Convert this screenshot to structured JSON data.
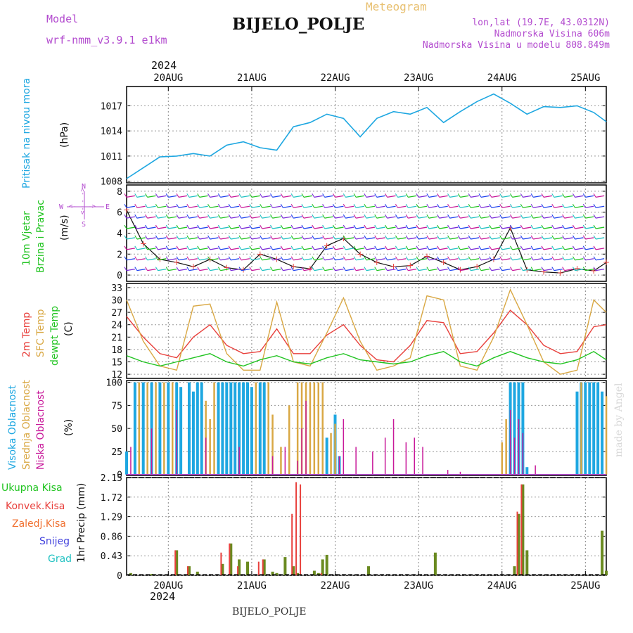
{
  "header": {
    "title": "BIJELO_POLJE",
    "meteogram": "Meteogram",
    "model_label": "Model",
    "model_name": "wrf-nmm_v3.9.1 e1km",
    "location": "lon,lat (19.7E, 43.0312N)",
    "elevation": "Nadmorska Visina 606m",
    "model_elevation": "Nadmorska Visina u modelu 808.849m",
    "year_top": "2024",
    "year_bottom": "2024",
    "footer": "BIJELO_POLJE",
    "watermark": "made by Angel"
  },
  "colors": {
    "cyan": "#1ea7e1",
    "magenta": "#b34ccf",
    "orange_title": "#e8c070",
    "red": "#e8403c",
    "gold": "#d9a844",
    "green": "#22c422",
    "olive": "#6a8a20",
    "purple": "#7a2bd8",
    "blue": "#2244ee",
    "teal": "#22c2c2",
    "pink": "#c8199a"
  },
  "chart_data": [
    {
      "type": "line",
      "name_label": "pressure",
      "labels": [
        "Pritisak na nivou mora",
        "(hPa)"
      ],
      "x": [
        0,
        0.2,
        0.4,
        0.6,
        0.8,
        1.0,
        1.2,
        1.4,
        1.6,
        1.8,
        2.0,
        2.2,
        2.4,
        2.6,
        2.8,
        3.0,
        3.2,
        3.4,
        3.6,
        3.8,
        4.0,
        4.2,
        4.4,
        4.6,
        4.8,
        5.0,
        5.2,
        5.4,
        5.6,
        5.75
      ],
      "values": [
        1008.3,
        1009.6,
        1010.9,
        1011.0,
        1011.3,
        1011.0,
        1012.3,
        1012.7,
        1012.0,
        1011.7,
        1014.5,
        1015.0,
        1016.0,
        1015.5,
        1013.3,
        1015.5,
        1016.3,
        1016.0,
        1016.8,
        1015.0,
        1016.3,
        1017.5,
        1018.4,
        1017.3,
        1016.0,
        1016.9,
        1016.8,
        1017.0,
        1016.2,
        1015.1
      ],
      "yticks": [
        1008,
        1011,
        1014,
        1017
      ],
      "ylim": [
        1007.8,
        1019.3
      ]
    },
    {
      "type": "line",
      "name_label": "wind",
      "labels": [
        "10m Vjetar",
        "Brzina i Pravac",
        "(m/s)"
      ],
      "compass": [
        "N",
        "S",
        "W",
        "E",
        "<- - ->",
        "<- - ->"
      ],
      "x": [
        0,
        0.2,
        0.4,
        0.6,
        0.8,
        1.0,
        1.2,
        1.4,
        1.6,
        1.8,
        2.0,
        2.2,
        2.4,
        2.6,
        2.8,
        3.0,
        3.2,
        3.4,
        3.6,
        3.8,
        4.0,
        4.2,
        4.4,
        4.6,
        4.8,
        5.0,
        5.2,
        5.4,
        5.6,
        5.75
      ],
      "values": [
        6.2,
        3.0,
        1.5,
        1.2,
        0.8,
        1.5,
        0.7,
        0.5,
        2.0,
        1.5,
        0.8,
        0.6,
        2.8,
        3.5,
        2.0,
        1.2,
        0.8,
        0.9,
        1.8,
        1.2,
        0.5,
        0.8,
        1.5,
        4.5,
        0.5,
        0.3,
        0.2,
        0.6,
        0.4,
        1.2
      ],
      "yticks": [
        0,
        2,
        4,
        6,
        8
      ],
      "ylim": [
        -0.6,
        8.6
      ]
    },
    {
      "type": "line",
      "name_label": "temperature",
      "labels": [
        "2m Temp",
        "SFC Temp",
        "dewpt Temp",
        "(C)"
      ],
      "x": [
        0,
        0.2,
        0.4,
        0.6,
        0.8,
        1.0,
        1.2,
        1.4,
        1.6,
        1.8,
        2.0,
        2.2,
        2.4,
        2.6,
        2.8,
        3.0,
        3.2,
        3.4,
        3.6,
        3.8,
        4.0,
        4.2,
        4.4,
        4.6,
        4.8,
        5.0,
        5.2,
        5.4,
        5.6,
        5.75
      ],
      "series": [
        {
          "name": "2m Temp",
          "values": [
            26.0,
            21.0,
            17.0,
            16.0,
            21.0,
            24.0,
            19.0,
            17.0,
            17.5,
            23.0,
            17.0,
            17.0,
            21.5,
            24.0,
            19.0,
            15.5,
            15.0,
            19.0,
            25.0,
            24.5,
            17.0,
            17.5,
            22.0,
            27.5,
            24.0,
            19.0,
            17.0,
            17.5,
            23.5,
            24.0
          ]
        },
        {
          "name": "SFC Temp",
          "values": [
            30.0,
            20.0,
            14.0,
            13.0,
            28.5,
            29.0,
            17.0,
            13.0,
            13.0,
            29.5,
            15.0,
            14.0,
            22.0,
            30.5,
            20.0,
            13.0,
            14.0,
            16.0,
            31.0,
            30.0,
            14.0,
            13.0,
            21.0,
            32.5,
            24.0,
            15.0,
            12.0,
            13.0,
            30.0,
            27.0
          ]
        },
        {
          "name": "dewpt Temp",
          "values": [
            16.5,
            15.0,
            14.0,
            15.0,
            16.0,
            17.0,
            15.0,
            14.0,
            15.5,
            16.5,
            15.0,
            14.5,
            16.0,
            17.0,
            15.5,
            15.0,
            14.5,
            15.0,
            16.5,
            17.5,
            15.0,
            14.0,
            16.0,
            17.5,
            16.0,
            15.0,
            14.5,
            15.5,
            17.5,
            15.5
          ]
        }
      ],
      "yticks": [
        12,
        15,
        18,
        21,
        24,
        27,
        30,
        33
      ],
      "ylim": [
        11,
        34
      ]
    },
    {
      "type": "bar",
      "name_label": "clouds",
      "labels": [
        "Visoka Oblacnost",
        "Srednja Oblacnost",
        "Niska Oblacnost",
        "(%)"
      ],
      "yticks": [
        0,
        25,
        50,
        75,
        100
      ],
      "ylim": [
        -1,
        102
      ],
      "series": [
        {
          "name": "Visoka Oblacnost",
          "x": [
            0.0,
            0.1,
            0.2,
            0.3,
            0.4,
            0.5,
            0.6,
            0.65,
            0.75,
            0.8,
            0.85,
            0.9,
            1.1,
            1.15,
            1.2,
            1.25,
            1.3,
            1.35,
            1.4,
            1.45,
            1.5,
            1.6,
            1.65,
            2.4,
            2.5,
            2.55,
            4.6,
            4.65,
            4.7,
            4.75,
            4.8,
            5.4,
            5.45,
            5.5,
            5.55,
            5.6,
            5.65,
            5.7
          ],
          "values": [
            25,
            100,
            100,
            100,
            100,
            100,
            100,
            95,
            100,
            90,
            100,
            100,
            100,
            100,
            100,
            100,
            100,
            100,
            100,
            100,
            95,
            100,
            100,
            40,
            65,
            20,
            100,
            100,
            100,
            100,
            8,
            90,
            100,
            100,
            100,
            100,
            100,
            90
          ]
        },
        {
          "name": "Srednja Oblacnost",
          "x": [
            0.15,
            0.25,
            0.35,
            0.45,
            0.55,
            0.95,
            1.0,
            1.05,
            1.55,
            1.7,
            1.75,
            1.85,
            1.95,
            2.05,
            2.1,
            2.15,
            2.2,
            2.25,
            2.3,
            2.35,
            2.45,
            2.5,
            4.5,
            4.55,
            5.45,
            5.75
          ],
          "values": [
            100,
            100,
            100,
            100,
            100,
            80,
            60,
            100,
            100,
            100,
            65,
            30,
            75,
            100,
            100,
            100,
            100,
            100,
            100,
            100,
            45,
            55,
            35,
            60,
            100,
            85
          ]
        },
        {
          "name": "Niska Oblacnost",
          "x": [
            0.05,
            0.3,
            0.6,
            0.95,
            1.35,
            1.75,
            1.9,
            2.05,
            2.1,
            2.15,
            2.55,
            2.6,
            2.75,
            2.95,
            3.1,
            3.2,
            3.35,
            3.45,
            3.55,
            3.85,
            4.0,
            4.6,
            4.65,
            4.7,
            4.75,
            4.9
          ],
          "values": [
            30,
            50,
            70,
            40,
            30,
            20,
            30,
            15,
            50,
            80,
            20,
            60,
            30,
            25,
            40,
            60,
            35,
            40,
            30,
            5,
            3,
            70,
            40,
            60,
            45,
            10
          ]
        }
      ]
    },
    {
      "type": "bar",
      "name_label": "precip",
      "labels": [
        "Ukupna Kisa",
        "Konvek.Kisa",
        "Zaledj.Kisa",
        "Snijeg",
        "Grad",
        "1hr Precip (mm)"
      ],
      "yticks": [
        0,
        0.43,
        0.86,
        1.29,
        1.72,
        2.15
      ],
      "ylim": [
        0,
        2.15
      ],
      "series": [
        {
          "name": "Ukupna Kisa",
          "x": [
            0.05,
            0.3,
            0.6,
            0.75,
            0.85,
            1.15,
            1.25,
            1.35,
            1.45,
            1.65,
            1.75,
            1.8,
            1.9,
            2.0,
            2.05,
            2.25,
            2.3,
            2.35,
            2.4,
            2.9,
            3.7,
            4.65,
            4.7,
            4.75,
            4.8,
            5.7,
            5.75
          ],
          "values": [
            0.05,
            0.03,
            0.55,
            0.2,
            0.08,
            0.25,
            0.7,
            0.35,
            0.3,
            0.35,
            0.08,
            0.05,
            0.4,
            0.2,
            0.05,
            0.1,
            0.05,
            0.35,
            0.45,
            0.2,
            0.5,
            0.2,
            1.35,
            2.0,
            0.55,
            0.98,
            0.1
          ]
        },
        {
          "name": "Konvek.Kisa",
          "x": [
            0.6,
            0.75,
            1.15,
            1.25,
            1.35,
            1.6,
            1.65,
            2.0,
            2.05,
            2.1,
            2.35,
            4.7,
            4.75
          ],
          "values": [
            0.55,
            0.2,
            0.5,
            0.7,
            0.2,
            0.3,
            0.35,
            1.35,
            2.05,
            2.0,
            0.05,
            1.4,
            2.0
          ]
        }
      ]
    }
  ],
  "x_axis": {
    "tick_labels": [
      "20AUG",
      "21AUG",
      "22AUG",
      "23AUG",
      "24AUG",
      "25AUG"
    ],
    "tick_positions": [
      0.5,
      1.5,
      2.5,
      3.5,
      4.5,
      5.5
    ],
    "range": [
      0.0,
      5.75
    ]
  }
}
